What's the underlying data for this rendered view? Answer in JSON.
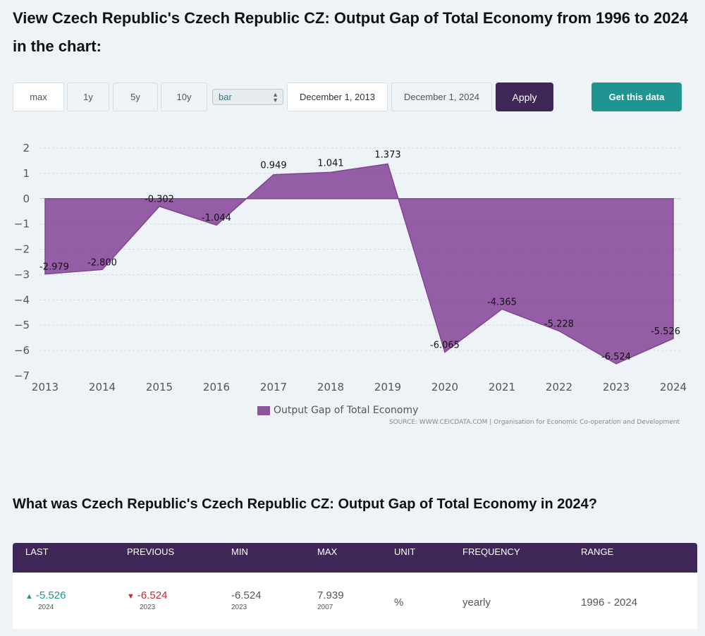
{
  "page": {
    "title": "View Czech Republic's Czech Republic CZ: Output Gap of Total Economy from 1996 to 2024 in the chart:"
  },
  "controls": {
    "range_buttons": [
      "max",
      "1y",
      "5y",
      "10y"
    ],
    "chart_type_select": "bar",
    "start_date": "December 1, 2013",
    "end_date": "December 1, 2024",
    "apply_label": "Apply",
    "get_data_label": "Get this data"
  },
  "colors": {
    "series_fill": "#8e54a0",
    "header_bg": "#3f2857",
    "accent_teal": "#1f9490",
    "negative_red": "#c0282d"
  },
  "chart_data": {
    "type": "area",
    "x": [
      "2013",
      "2014",
      "2015",
      "2016",
      "2017",
      "2018",
      "2019",
      "2020",
      "2021",
      "2022",
      "2023",
      "2024"
    ],
    "series": [
      {
        "name": "Output Gap of Total Economy",
        "values": [
          -2.979,
          -2.8,
          -0.302,
          -1.044,
          0.949,
          1.041,
          1.373,
          -6.065,
          -4.365,
          -5.228,
          -6.524,
          -5.526
        ]
      }
    ],
    "data_labels": [
      "-2.979",
      "-2.800",
      "-0.302",
      "-1.044",
      "0.949",
      "1.041",
      "1.373",
      "-6.065",
      "-4.365",
      "-5.228",
      "-6.524",
      "-5.526"
    ],
    "y_ticks": [
      "2",
      "1",
      "0",
      "-1",
      "-2",
      "-3",
      "-4",
      "-5",
      "-6",
      "-7"
    ],
    "ylim": [
      -7,
      2
    ],
    "grid": true,
    "legend": "bottom-center",
    "source": "SOURCE: WWW.CEICDATA.COM | Organisation for Economic Co-operation and Development"
  },
  "question": {
    "title": "What was Czech Republic's Czech Republic CZ: Output Gap of Total Economy in 2024?"
  },
  "stats": {
    "headers": [
      "LAST",
      "PREVIOUS",
      "MIN",
      "MAX",
      "UNIT",
      "FREQUENCY",
      "RANGE"
    ],
    "last": {
      "value": "-5.526",
      "year": "2024"
    },
    "previous": {
      "value": "-6.524",
      "year": "2023"
    },
    "min": {
      "value": "-6.524",
      "year": "2023"
    },
    "max": {
      "value": "7.939",
      "year": "2007"
    },
    "unit": "%",
    "frequency": "yearly",
    "range": "1996 - 2024"
  }
}
